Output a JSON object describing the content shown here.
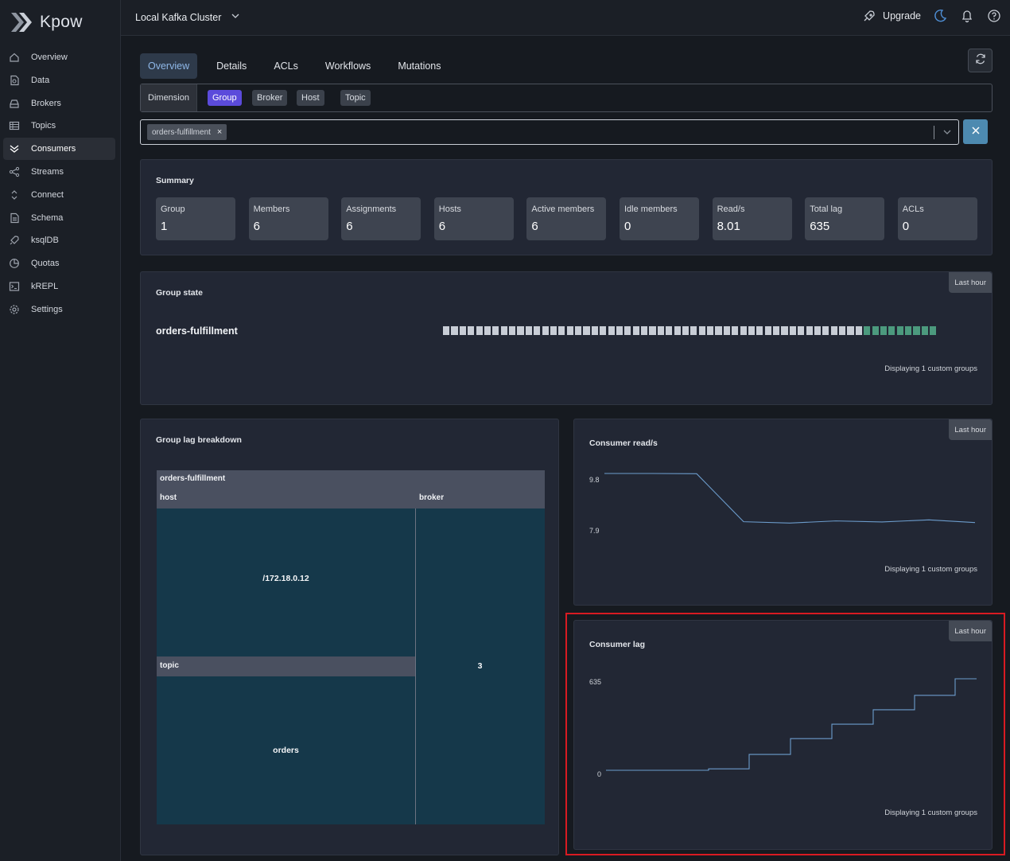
{
  "app": {
    "name": "Kpow"
  },
  "sidebar": {
    "items": [
      {
        "label": "Overview",
        "icon": "home-icon"
      },
      {
        "label": "Data",
        "icon": "data-icon"
      },
      {
        "label": "Brokers",
        "icon": "brokers-icon"
      },
      {
        "label": "Topics",
        "icon": "topics-icon"
      },
      {
        "label": "Consumers",
        "icon": "consumers-icon",
        "active": true
      },
      {
        "label": "Streams",
        "icon": "streams-icon"
      },
      {
        "label": "Connect",
        "icon": "connect-icon"
      },
      {
        "label": "Schema",
        "icon": "schema-icon"
      },
      {
        "label": "ksqlDB",
        "icon": "rocket-icon"
      },
      {
        "label": "Quotas",
        "icon": "quotas-icon"
      },
      {
        "label": "kREPL",
        "icon": "terminal-icon"
      },
      {
        "label": "Settings",
        "icon": "gear-icon"
      }
    ]
  },
  "topbar": {
    "cluster": "Local Kafka Cluster",
    "upgrade": "Upgrade"
  },
  "tabs": [
    "Overview",
    "Details",
    "ACLs",
    "Workflows",
    "Mutations"
  ],
  "dimension": {
    "label": "Dimension",
    "options": [
      "Group",
      "Broker",
      "Host",
      "Topic"
    ],
    "selected": "Group"
  },
  "filter": {
    "chip": "orders-fulfillment"
  },
  "summary": {
    "title": "Summary",
    "stats": [
      {
        "label": "Group",
        "value": "1"
      },
      {
        "label": "Members",
        "value": "6"
      },
      {
        "label": "Assignments",
        "value": "6"
      },
      {
        "label": "Hosts",
        "value": "6"
      },
      {
        "label": "Active members",
        "value": "6"
      },
      {
        "label": "Idle members",
        "value": "0"
      },
      {
        "label": "Read/s",
        "value": "8.01"
      },
      {
        "label": "Total lag",
        "value": "635"
      },
      {
        "label": "ACLs",
        "value": "0"
      }
    ]
  },
  "group_state": {
    "title": "Group state",
    "range": "Last hour",
    "group": "orders-fulfillment",
    "segments_total": 60,
    "segments_stable": 9,
    "colors": {
      "rebalancing": "#c8cdd6",
      "stable": "#4c9a7e"
    },
    "note": "Displaying 1 custom groups"
  },
  "lag_breakdown": {
    "title": "Group lag breakdown",
    "group": "orders-fulfillment",
    "host_header": "host",
    "broker_header": "broker",
    "topic_header": "topic",
    "host": "/172.18.0.12",
    "topic": "orders",
    "broker": "3"
  },
  "read_chart": {
    "title": "Consumer read/s",
    "range": "Last hour",
    "note": "Displaying 1 custom groups",
    "y_ticks": [
      "9.8",
      "7.9"
    ],
    "chart_data": {
      "type": "line",
      "ylim": [
        7.9,
        9.8
      ],
      "values": [
        9.8,
        9.8,
        9.79,
        8.0,
        7.95,
        8.03,
        7.99,
        8.07,
        7.97
      ]
    }
  },
  "lag_chart": {
    "title": "Consumer lag",
    "range": "Last hour",
    "note": "Displaying 1 custom groups",
    "y_ticks": [
      "635",
      "0"
    ],
    "chart_data": {
      "type": "line",
      "ylim": [
        0,
        635
      ],
      "values": [
        0,
        0,
        10,
        110,
        220,
        320,
        420,
        520,
        635
      ]
    }
  }
}
